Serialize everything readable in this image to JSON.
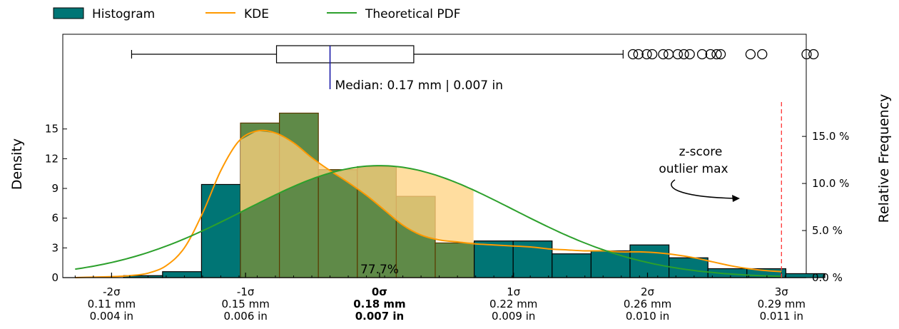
{
  "chart_data": {
    "type": "bar",
    "legend": {
      "placement": "top-left",
      "items": [
        {
          "label": "Histogram",
          "color": "#007575",
          "kind": "box"
        },
        {
          "label": "KDE",
          "color": "#ff9900",
          "kind": "line"
        },
        {
          "label": "Theoretical PDF",
          "color": "#2ca02c",
          "kind": "line"
        }
      ]
    },
    "xlim": [
      0.0966,
      0.3008
    ],
    "ylabel_left": "Density",
    "ylabel_right": "Relative Frequency",
    "ylim": [
      0,
      17.5
    ],
    "yticks_left": [
      0,
      3,
      6,
      9,
      12,
      15
    ],
    "ytick_labels_left": [
      "0",
      "3",
      "6",
      "9",
      "12",
      "15"
    ],
    "rel_freq_ticks": [
      {
        "density": 0,
        "label": "0.0 %"
      },
      {
        "density": 4.75,
        "label": "5.0 %"
      },
      {
        "density": 9.5,
        "label": "10.0 %"
      },
      {
        "density": 14.25,
        "label": "15.0 %"
      }
    ],
    "xticks": [
      {
        "x": 0.11,
        "sigma": "-2σ",
        "mm": "0.11 mm",
        "inch": "0.004 in",
        "bold": false
      },
      {
        "x": 0.1468,
        "sigma": "-1σ",
        "mm": "0.15 mm",
        "inch": "0.006 in",
        "bold": false
      },
      {
        "x": 0.1836,
        "sigma": "0σ",
        "mm": "0.18 mm",
        "inch": "0.007 in",
        "bold": true
      },
      {
        "x": 0.2204,
        "sigma": "1σ",
        "mm": "0.22 mm",
        "inch": "0.009 in",
        "bold": false
      },
      {
        "x": 0.2572,
        "sigma": "2σ",
        "mm": "0.26 mm",
        "inch": "0.010 in",
        "bold": false
      },
      {
        "x": 0.294,
        "sigma": "3σ",
        "mm": "0.29 mm",
        "inch": "0.011 in",
        "bold": false
      }
    ],
    "histogram": {
      "bin_edges": [
        0.1133,
        0.124,
        0.1347,
        0.1454,
        0.1561,
        0.1668,
        0.1775,
        0.1882,
        0.1989,
        0.2096,
        0.2203,
        0.231,
        0.2417,
        0.2524,
        0.2631,
        0.2738,
        0.2845,
        0.2952,
        0.3059
      ],
      "densities": [
        0.2,
        0.6,
        9.4,
        15.6,
        16.6,
        10.9,
        11.2,
        8.2,
        3.5,
        3.7,
        3.7,
        2.4,
        2.7,
        3.3,
        2.0,
        0.9,
        0.9,
        0.4
      ],
      "highlight_range": [
        0.1454,
        0.2096
      ],
      "highlight_color": "#5f8a48",
      "bar_color": "#007575"
    },
    "kde": {
      "x": [
        0.1,
        0.105,
        0.11,
        0.115,
        0.12,
        0.125,
        0.13,
        0.135,
        0.14,
        0.145,
        0.15,
        0.155,
        0.16,
        0.165,
        0.17,
        0.175,
        0.18,
        0.185,
        0.19,
        0.195,
        0.2,
        0.205,
        0.21,
        0.215,
        0.22,
        0.225,
        0.23,
        0.235,
        0.24,
        0.245,
        0.25,
        0.255,
        0.26,
        0.265,
        0.27,
        0.275,
        0.28,
        0.285,
        0.29,
        0.294
      ],
      "y": [
        0.0,
        0.05,
        0.1,
        0.2,
        0.45,
        1.2,
        3.0,
        6.5,
        10.8,
        13.8,
        14.8,
        14.6,
        13.6,
        12.1,
        10.8,
        9.6,
        8.3,
        6.8,
        5.3,
        4.3,
        3.8,
        3.6,
        3.4,
        3.3,
        3.2,
        3.1,
        2.9,
        2.8,
        2.7,
        2.7,
        2.6,
        2.6,
        2.5,
        2.3,
        2.0,
        1.6,
        1.2,
        0.9,
        0.7,
        0.6
      ],
      "fill_range": [
        0.1454,
        0.2096
      ],
      "fill_color": "#ffd27f"
    },
    "theoretical_pdf": {
      "mean": 0.1836,
      "sd": 0.0368,
      "x_range": [
        0.1,
        0.294
      ]
    },
    "boxplot": {
      "whisker_low": 0.1155,
      "q1": 0.1553,
      "median": 0.17,
      "q3": 0.193,
      "whisker_high": 0.2505,
      "outliers": [
        0.2532,
        0.2547,
        0.257,
        0.2585,
        0.2615,
        0.263,
        0.2655,
        0.2672,
        0.2688,
        0.2722,
        0.2745,
        0.2762,
        0.2773,
        0.2855,
        0.2887,
        0.3009,
        0.3028
      ]
    },
    "median_label": "Median: 0.17 mm | 0.007 in",
    "percent_label": {
      "x": 0.1836,
      "text": "77.7%"
    },
    "outlier_threshold": {
      "x": 0.294,
      "label_lines": [
        "z-score",
        "outlier max"
      ]
    }
  }
}
